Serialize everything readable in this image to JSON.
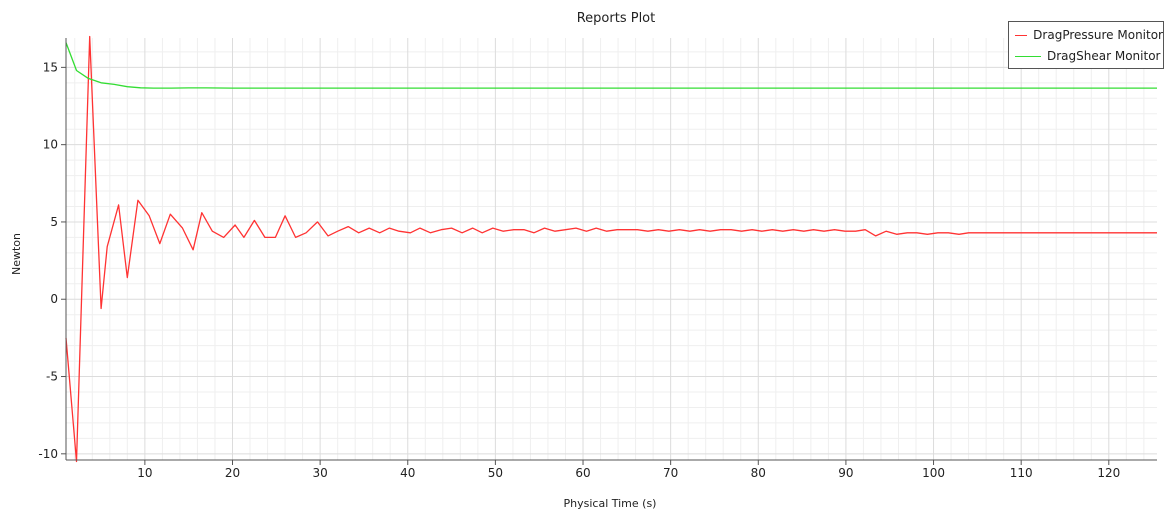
{
  "chart_data": {
    "type": "line",
    "title": "Reports Plot",
    "xlabel": "Physical Time (s)",
    "ylabel": "Newton",
    "xlim": [
      1,
      125.5
    ],
    "ylim": [
      -10.4,
      16.9
    ],
    "xticks": [
      10,
      20,
      30,
      40,
      50,
      60,
      70,
      80,
      90,
      100,
      110,
      120
    ],
    "yticks": [
      -10,
      -5,
      0,
      5,
      10,
      15
    ],
    "grid": true,
    "legend_position": "top-right",
    "series": [
      {
        "name": "DragPressure Monitor",
        "color": "#ff3333",
        "x": [
          1,
          2.2,
          3.7,
          5,
          5.7,
          7,
          8,
          9.2,
          10.5,
          11.7,
          12.9,
          14.3,
          15.5,
          16.5,
          17.7,
          19,
          20.3,
          21.3,
          22.5,
          23.7,
          24.9,
          26,
          27.2,
          28.4,
          29.7,
          30.9,
          32,
          33.2,
          34.4,
          35.6,
          36.8,
          37.9,
          39,
          40.3,
          41.4,
          42.6,
          43.8,
          45,
          46.2,
          47.4,
          48.5,
          49.7,
          50.9,
          52.1,
          53.3,
          54.4,
          55.6,
          56.8,
          58,
          59.2,
          60.4,
          61.5,
          62.7,
          63.9,
          65,
          66.2,
          67.4,
          68.6,
          69.8,
          71,
          72.2,
          73.3,
          74.5,
          75.7,
          76.9,
          78.1,
          79.3,
          80.4,
          81.6,
          82.8,
          84,
          85.2,
          86.3,
          87.5,
          88.7,
          89.9,
          91.1,
          92.2,
          93.4,
          94.6,
          95.8,
          97,
          98.1,
          99.3,
          100.5,
          101.7,
          102.9,
          104,
          105.2,
          106.4,
          107.6,
          108.8,
          110,
          111.1,
          112.3,
          113.5,
          114.7,
          115.8,
          117,
          118.2,
          119.4,
          120.6,
          121.7,
          122.9,
          124.1,
          125.5
        ],
        "values": [
          -2.5,
          -10.5,
          17.0,
          -0.6,
          3.4,
          6.1,
          1.4,
          6.4,
          5.4,
          3.6,
          5.5,
          4.6,
          3.2,
          5.6,
          4.4,
          4.0,
          4.8,
          4.0,
          5.1,
          4.0,
          4.0,
          5.4,
          4.0,
          4.3,
          5.0,
          4.1,
          4.4,
          4.7,
          4.3,
          4.6,
          4.3,
          4.6,
          4.4,
          4.3,
          4.6,
          4.3,
          4.5,
          4.6,
          4.3,
          4.6,
          4.3,
          4.6,
          4.4,
          4.5,
          4.5,
          4.3,
          4.6,
          4.4,
          4.5,
          4.6,
          4.4,
          4.6,
          4.4,
          4.5,
          4.5,
          4.5,
          4.4,
          4.5,
          4.4,
          4.5,
          4.4,
          4.5,
          4.4,
          4.5,
          4.5,
          4.4,
          4.5,
          4.4,
          4.5,
          4.4,
          4.5,
          4.4,
          4.5,
          4.4,
          4.5,
          4.4,
          4.4,
          4.5,
          4.1,
          4.4,
          4.2,
          4.3,
          4.3,
          4.2,
          4.3,
          4.3,
          4.2,
          4.3,
          4.3,
          4.3,
          4.3,
          4.3,
          4.3,
          4.3,
          4.3,
          4.3,
          4.3,
          4.3,
          4.3,
          4.3,
          4.3,
          4.3,
          4.3,
          4.3,
          4.3,
          4.3
        ]
      },
      {
        "name": "DragShear Monitor",
        "color": "#33dd33",
        "x": [
          1,
          2.2,
          3.5,
          5,
          6.5,
          8,
          9.5,
          11,
          13,
          15,
          17,
          20,
          25,
          30,
          40,
          50,
          60,
          70,
          80,
          90,
          100,
          110,
          120,
          125.5
        ],
        "values": [
          16.6,
          14.8,
          14.3,
          14.0,
          13.9,
          13.75,
          13.68,
          13.66,
          13.66,
          13.67,
          13.67,
          13.66,
          13.66,
          13.66,
          13.66,
          13.66,
          13.66,
          13.66,
          13.66,
          13.66,
          13.66,
          13.66,
          13.66,
          13.66
        ]
      }
    ]
  }
}
